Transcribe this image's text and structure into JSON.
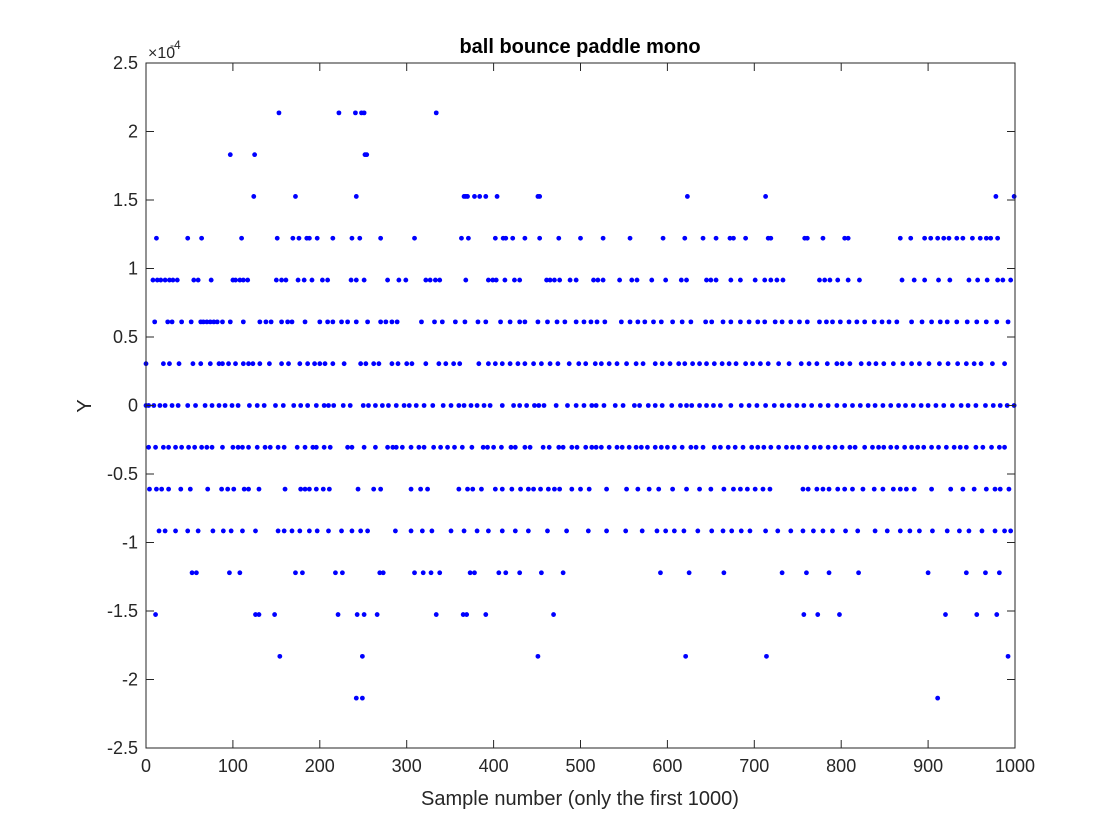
{
  "chart_data": {
    "type": "scatter",
    "title": "ball bounce paddle mono",
    "xlabel": "Sample number (only the first 1000)",
    "ylabel": "Y",
    "xlim": [
      0,
      1000
    ],
    "ylim": [
      -0.00025,
      0.00025
    ],
    "x_ticks": [
      0,
      100,
      200,
      300,
      400,
      500,
      600,
      700,
      800,
      900,
      1000
    ],
    "x_tick_labels": [
      "0",
      "100",
      "200",
      "300",
      "400",
      "500",
      "600",
      "700",
      "800",
      "900",
      "1000"
    ],
    "y_ticks": [
      -0.00025,
      -0.0002,
      -0.00015,
      -0.0001,
      -5e-05,
      0,
      5e-05,
      0.0001,
      0.00015,
      0.0002,
      0.00025
    ],
    "y_tick_labels": [
      "-2.5",
      "-2",
      "-1.5",
      "-1",
      "-0.5",
      "0",
      "0.5",
      "1",
      "1.5",
      "2",
      "2.5"
    ],
    "y_exponent_base": "×10",
    "y_exponent_power": "-4",
    "grid": false,
    "marker_color": "#0000ff",
    "marker_size": 4,
    "levels": [
      0.0002136,
      0.0001831,
      0.0001526,
      0.0001221,
      9.155e-05,
      6.104e-05,
      3.052e-05,
      0,
      -3.052e-05,
      -6.104e-05,
      -9.155e-05,
      -0.0001221,
      -0.0001526,
      -0.0001831,
      -0.0002136
    ],
    "points_by_level": [
      [
        153,
        222,
        241,
        248,
        251,
        334
      ],
      [
        97,
        125,
        252,
        254
      ],
      [
        124,
        172,
        242,
        366,
        368,
        370,
        378,
        384,
        391,
        404,
        451,
        453,
        623,
        713,
        978,
        999
      ],
      [
        12,
        48,
        64,
        110,
        151,
        169,
        176,
        185,
        188,
        197,
        215,
        237,
        246,
        270,
        309,
        363,
        371,
        402,
        411,
        414,
        422,
        436,
        453,
        475,
        500,
        526,
        557,
        595,
        620,
        641,
        656,
        672,
        676,
        690,
        716,
        719,
        758,
        761,
        779,
        804,
        808,
        868,
        880,
        896,
        903,
        911,
        918,
        924,
        933,
        940,
        951,
        960,
        967,
        972,
        980
      ],
      [
        8,
        13,
        17,
        22,
        27,
        31,
        36,
        55,
        60,
        75,
        100,
        103,
        108,
        112,
        117,
        150,
        156,
        161,
        175,
        182,
        191,
        203,
        209,
        236,
        242,
        251,
        278,
        291,
        299,
        322,
        327,
        333,
        338,
        368,
        394,
        399,
        403,
        413,
        424,
        430,
        461,
        465,
        470,
        476,
        488,
        495,
        515,
        520,
        526,
        545,
        559,
        565,
        582,
        598,
        616,
        622,
        645,
        650,
        656,
        673,
        684,
        701,
        712,
        719,
        726,
        733,
        775,
        781,
        787,
        796,
        808,
        821,
        870,
        884,
        896,
        912,
        925,
        947,
        957,
        968,
        980,
        986,
        995
      ],
      [
        10,
        25,
        30,
        41,
        52,
        63,
        66,
        70,
        74,
        78,
        82,
        88,
        97,
        112,
        131,
        138,
        144,
        156,
        163,
        168,
        183,
        200,
        209,
        215,
        225,
        232,
        242,
        255,
        270,
        276,
        283,
        289,
        317,
        332,
        341,
        356,
        367,
        382,
        391,
        408,
        419,
        430,
        436,
        451,
        462,
        473,
        482,
        495,
        504,
        512,
        519,
        528,
        547,
        557,
        566,
        574,
        584,
        593,
        606,
        617,
        627,
        644,
        651,
        664,
        673,
        684,
        694,
        704,
        712,
        724,
        732,
        742,
        752,
        761,
        775,
        783,
        790,
        799,
        809,
        818,
        827,
        838,
        847,
        855,
        864,
        881,
        893,
        904,
        914,
        922,
        933,
        945,
        956,
        967,
        979,
        992
      ],
      [
        0,
        20,
        27,
        38,
        54,
        63,
        74,
        84,
        88,
        95,
        103,
        112,
        118,
        123,
        131,
        142,
        156,
        164,
        177,
        186,
        194,
        200,
        206,
        215,
        228,
        247,
        253,
        262,
        268,
        283,
        290,
        300,
        306,
        322,
        337,
        345,
        354,
        361,
        383,
        394,
        402,
        410,
        419,
        428,
        436,
        446,
        455,
        465,
        474,
        487,
        498,
        506,
        517,
        524,
        533,
        542,
        553,
        564,
        572,
        586,
        594,
        603,
        613,
        620,
        629,
        637,
        645,
        654,
        663,
        671,
        679,
        690,
        698,
        707,
        716,
        728,
        740,
        754,
        763,
        772,
        784,
        795,
        801,
        810,
        823,
        832,
        840,
        849,
        860,
        871,
        881,
        890,
        901,
        913,
        923,
        934,
        944,
        953,
        961,
        974,
        988
      ],
      [
        0,
        3,
        9,
        16,
        22,
        30,
        37,
        48,
        57,
        68,
        76,
        84,
        91,
        99,
        106,
        119,
        128,
        136,
        149,
        158,
        170,
        178,
        186,
        196,
        205,
        210,
        216,
        227,
        235,
        250,
        256,
        264,
        272,
        279,
        288,
        297,
        303,
        311,
        320,
        330,
        342,
        351,
        360,
        366,
        374,
        381,
        389,
        396,
        410,
        423,
        430,
        438,
        447,
        452,
        458,
        472,
        485,
        495,
        504,
        513,
        518,
        527,
        540,
        549,
        562,
        568,
        578,
        586,
        594,
        605,
        615,
        622,
        628,
        637,
        645,
        653,
        661,
        673,
        685,
        694,
        703,
        713,
        723,
        732,
        740,
        749,
        757,
        766,
        776,
        785,
        795,
        804,
        813,
        822,
        831,
        839,
        848,
        857,
        866,
        874,
        883,
        892,
        900,
        909,
        918,
        928,
        938,
        946,
        955,
        966,
        975,
        983,
        991,
        999
      ],
      [
        3,
        11,
        20,
        26,
        34,
        41,
        49,
        56,
        64,
        70,
        76,
        88,
        100,
        106,
        111,
        118,
        128,
        137,
        143,
        152,
        159,
        174,
        183,
        192,
        196,
        205,
        212,
        232,
        237,
        251,
        264,
        278,
        284,
        288,
        295,
        305,
        314,
        320,
        331,
        339,
        347,
        355,
        364,
        375,
        388,
        393,
        400,
        409,
        420,
        425,
        436,
        442,
        457,
        464,
        475,
        480,
        490,
        496,
        506,
        513,
        518,
        524,
        533,
        542,
        548,
        556,
        564,
        570,
        577,
        586,
        593,
        600,
        608,
        617,
        627,
        633,
        641,
        654,
        661,
        670,
        678,
        687,
        697,
        704,
        711,
        719,
        728,
        737,
        744,
        751,
        760,
        769,
        776,
        785,
        793,
        801,
        810,
        816,
        827,
        836,
        843,
        849,
        857,
        864,
        873,
        881,
        888,
        895,
        904,
        912,
        921,
        930,
        937,
        944,
        955,
        963,
        973,
        982,
        988
      ],
      [
        4,
        12,
        18,
        26,
        40,
        51,
        71,
        87,
        94,
        101,
        113,
        118,
        130,
        160,
        178,
        183,
        188,
        196,
        204,
        211,
        244,
        262,
        270,
        305,
        316,
        324,
        360,
        370,
        376,
        386,
        402,
        410,
        421,
        431,
        440,
        446,
        454,
        463,
        470,
        476,
        490,
        500,
        510,
        530,
        553,
        566,
        579,
        590,
        606,
        622,
        637,
        650,
        665,
        676,
        684,
        692,
        701,
        710,
        718,
        756,
        762,
        772,
        779,
        786,
        796,
        804,
        813,
        825,
        838,
        848,
        860,
        868,
        875,
        884,
        904,
        926,
        940,
        953,
        967,
        977,
        983,
        993
      ],
      [
        15,
        22,
        34,
        48,
        60,
        77,
        89,
        98,
        111,
        126,
        152,
        159,
        168,
        177,
        188,
        197,
        210,
        225,
        237,
        247,
        255,
        287,
        305,
        318,
        329,
        351,
        366,
        381,
        394,
        410,
        425,
        440,
        462,
        484,
        509,
        530,
        552,
        571,
        588,
        598,
        608,
        619,
        635,
        651,
        664,
        674,
        685,
        695,
        713,
        727,
        742,
        756,
        768,
        779,
        790,
        805,
        819,
        839,
        853,
        868,
        879,
        890,
        905,
        922,
        936,
        947,
        962,
        977,
        988,
        995
      ],
      [
        53,
        58,
        96,
        108,
        172,
        180,
        218,
        226,
        269,
        273,
        309,
        319,
        328,
        338,
        373,
        378,
        406,
        414,
        430,
        455,
        480,
        592,
        625,
        665,
        732,
        760,
        786,
        820,
        900,
        944,
        966,
        982
      ],
      [
        11,
        126,
        130,
        148,
        221,
        243,
        251,
        266,
        334,
        365,
        369,
        391,
        469,
        757,
        773,
        798,
        920,
        956,
        979
      ],
      [
        154,
        249,
        451,
        621,
        714,
        992
      ],
      [
        242,
        249,
        911
      ]
    ]
  }
}
